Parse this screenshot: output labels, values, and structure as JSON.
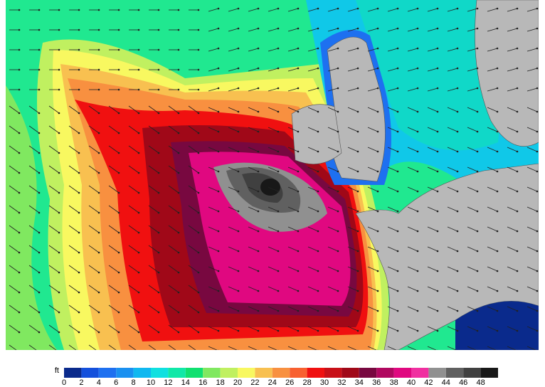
{
  "legend": {
    "unit": "ft",
    "ticks": [
      0,
      2,
      4,
      6,
      8,
      10,
      12,
      14,
      16,
      18,
      20,
      22,
      24,
      26,
      28,
      30,
      32,
      34,
      36,
      38,
      40,
      42,
      44,
      46,
      48
    ],
    "colors": [
      "#0a2a8c",
      "#1450dc",
      "#1e70f0",
      "#1a90f0",
      "#10b8f0",
      "#10e0e0",
      "#10e8a8",
      "#10e070",
      "#80e860",
      "#c0f060",
      "#f8f860",
      "#f8c050",
      "#f89040",
      "#f86030",
      "#f01010",
      "#c81018",
      "#a00818",
      "#780840",
      "#b00860",
      "#e00880",
      "#f030a0",
      "#909090",
      "#606060",
      "#404040",
      "#181818"
    ]
  }
}
